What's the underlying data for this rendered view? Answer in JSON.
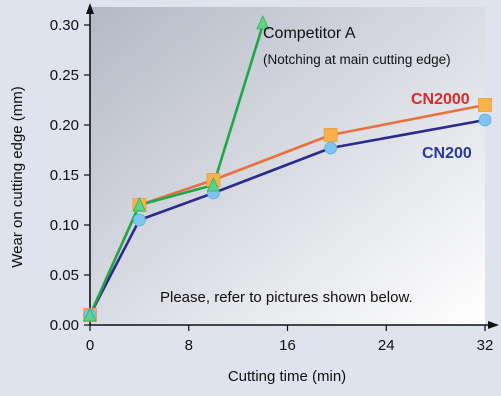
{
  "chart_data": {
    "type": "line",
    "title": "",
    "xlabel": "Cutting time (min)",
    "ylabel": "Wear on cutting edge (mm)",
    "xlim": [
      0,
      32
    ],
    "ylim": [
      0,
      0.3
    ],
    "x_ticks": [
      "0",
      "8",
      "16",
      "24",
      "32"
    ],
    "y_ticks": [
      "0.00",
      "0.05",
      "0.10",
      "0.15",
      "0.20",
      "0.25",
      "0.30"
    ],
    "grid": false,
    "legend": "inline-labels",
    "series": [
      {
        "name": "Competitor A",
        "note": "(Notching at main cutting edge)",
        "color": "#1fa84a",
        "marker": "triangle",
        "points": [
          [
            0,
            0.01
          ],
          [
            4,
            0.12
          ],
          [
            10,
            0.14
          ],
          [
            14,
            0.3
          ]
        ]
      },
      {
        "name": "CN2000",
        "color": "#e8713f",
        "marker": "square",
        "points": [
          [
            0,
            0.01
          ],
          [
            4,
            0.12
          ],
          [
            10,
            0.145
          ],
          [
            19.5,
            0.19
          ],
          [
            32,
            0.22
          ]
        ]
      },
      {
        "name": "CN200",
        "color": "#2b2b8c",
        "marker": "circle",
        "points": [
          [
            0,
            0.01
          ],
          [
            4,
            0.105
          ],
          [
            10,
            0.132
          ],
          [
            19.5,
            0.177
          ],
          [
            32,
            0.205
          ]
        ]
      }
    ],
    "annotations": [
      {
        "text": "Please, refer to pictures shown below."
      }
    ]
  },
  "colors": {
    "background": "#dfe3ed",
    "plot_top_left": "#b4b9c6",
    "plot_bottom_right": "#ffffff",
    "axis": "#111111",
    "cn2000_label": "#d92b2b",
    "cn200_label": "#2a3a9a",
    "marker_square": "#f7b24a",
    "marker_circle": "#7ec4ee",
    "marker_triangle": "#5fd28a"
  }
}
